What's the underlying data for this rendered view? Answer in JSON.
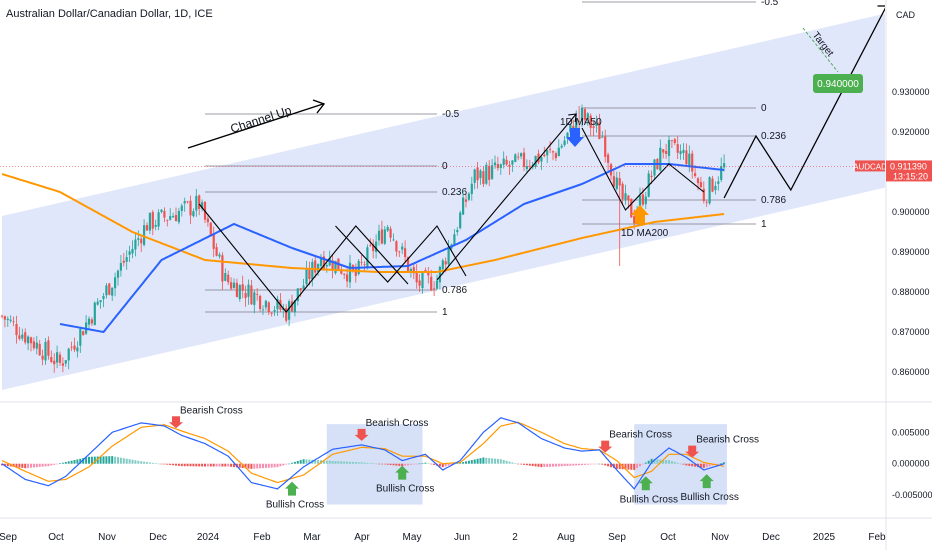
{
  "title": "Australian Dollar/Canadian Dollar, 1D, ICE",
  "currency": "CAD",
  "symbol_label": "AUDCAD",
  "last_price": "0.911390",
  "countdown": "13:15:20",
  "target_label": "Target",
  "target_value": "0.940000",
  "colors": {
    "channel": "#dfe6fb",
    "ma50": "#2962ff",
    "ma200": "#ff9800",
    "up": "#26a69a",
    "down": "#ef5350",
    "accent_green": "#4caf50",
    "highlight_box": "#cfdcf7"
  },
  "chart_data": [
    {
      "type": "candlestick",
      "ylim": [
        0.853,
        0.953
      ],
      "y_ticks": [
        "0.930000",
        "0.920000",
        "0.910000",
        "0.900000",
        "0.890000",
        "0.880000",
        "0.870000",
        "0.860000"
      ],
      "y_tick_values": [
        0.93,
        0.92,
        0.91,
        0.9,
        0.89,
        0.88,
        0.87,
        0.86
      ],
      "x_ticks": [
        "Sep",
        "Oct",
        "Nov",
        "Dec",
        "2024",
        "Feb",
        "Mar",
        "Apr",
        "May",
        "Jun",
        "2",
        "Aug",
        "Sep",
        "Oct",
        "Nov",
        "Dec",
        "2025",
        "Feb"
      ],
      "anchors": [
        {
          "day": 0,
          "price": 0.874
        },
        {
          "day": 20,
          "price": 0.862
        },
        {
          "day": 28,
          "price": 0.871
        },
        {
          "day": 50,
          "price": 0.897
        },
        {
          "day": 68,
          "price": 0.902
        },
        {
          "day": 77,
          "price": 0.883
        },
        {
          "day": 98,
          "price": 0.875
        },
        {
          "day": 110,
          "price": 0.889
        },
        {
          "day": 122,
          "price": 0.884
        },
        {
          "day": 133,
          "price": 0.897
        },
        {
          "day": 143,
          "price": 0.882
        },
        {
          "day": 150,
          "price": 0.883
        },
        {
          "day": 163,
          "price": 0.909
        },
        {
          "day": 178,
          "price": 0.912
        },
        {
          "day": 191,
          "price": 0.915
        },
        {
          "day": 200,
          "price": 0.924
        },
        {
          "day": 207,
          "price": 0.919
        },
        {
          "day": 213,
          "price": 0.904
        },
        {
          "day": 218,
          "price": 0.899
        },
        {
          "day": 228,
          "price": 0.916
        },
        {
          "day": 236,
          "price": 0.914
        },
        {
          "day": 242,
          "price": 0.904
        },
        {
          "day": 249,
          "price": 0.9114
        }
      ],
      "ma50": [
        {
          "day": 20,
          "price": 0.872
        },
        {
          "day": 35,
          "price": 0.87
        },
        {
          "day": 55,
          "price": 0.888
        },
        {
          "day": 80,
          "price": 0.897
        },
        {
          "day": 100,
          "price": 0.891
        },
        {
          "day": 120,
          "price": 0.886
        },
        {
          "day": 140,
          "price": 0.8865
        },
        {
          "day": 160,
          "price": 0.893
        },
        {
          "day": 180,
          "price": 0.902
        },
        {
          "day": 200,
          "price": 0.907
        },
        {
          "day": 215,
          "price": 0.912
        },
        {
          "day": 230,
          "price": 0.912
        },
        {
          "day": 249,
          "price": 0.9105
        }
      ],
      "ma200": [
        {
          "day": 0,
          "price": 0.9095
        },
        {
          "day": 20,
          "price": 0.905
        },
        {
          "day": 45,
          "price": 0.895
        },
        {
          "day": 70,
          "price": 0.888
        },
        {
          "day": 100,
          "price": 0.886
        },
        {
          "day": 130,
          "price": 0.885
        },
        {
          "day": 150,
          "price": 0.885
        },
        {
          "day": 170,
          "price": 0.888
        },
        {
          "day": 200,
          "price": 0.8935
        },
        {
          "day": 225,
          "price": 0.8975
        },
        {
          "day": 249,
          "price": 0.8995
        }
      ],
      "channel": {
        "lower": [
          {
            "day": 0,
            "price": 0.8555
          },
          {
            "day": 325,
            "price": 0.9095
          }
        ],
        "upper": [
          {
            "day": 0,
            "price": 0.899
          },
          {
            "day": 325,
            "price": 0.953
          }
        ]
      },
      "fib_sets": [
        {
          "from_day": 70,
          "to_day": 150,
          "levels": [
            {
              "label": "-0.5",
              "price": 0.9245
            },
            {
              "label": "0",
              "price": 0.9115
            },
            {
              "label": "0.236",
              "price": 0.905
            },
            {
              "label": "0.786",
              "price": 0.8805
            },
            {
              "label": "1",
              "price": 0.875
            }
          ]
        },
        {
          "from_day": 200,
          "to_day": 260,
          "levels": [
            {
              "label": "-0.5",
              "price": 0.9525
            },
            {
              "label": "0",
              "price": 0.926
            },
            {
              "label": "0.236",
              "price": 0.919
            },
            {
              "label": "0.786",
              "price": 0.903
            },
            {
              "label": "1",
              "price": 0.897
            }
          ]
        }
      ],
      "zigzags": [
        [
          {
            "day": 68,
            "price": 0.902
          },
          {
            "day": 98,
            "price": 0.875
          },
          {
            "day": 122,
            "price": 0.8965
          },
          {
            "day": 140,
            "price": 0.882
          }
        ],
        [
          {
            "day": 115,
            "price": 0.8965
          },
          {
            "day": 133,
            "price": 0.8825
          },
          {
            "day": 150,
            "price": 0.8965
          },
          {
            "day": 160,
            "price": 0.884
          }
        ],
        [
          {
            "day": 150,
            "price": 0.883
          },
          {
            "day": 198,
            "price": 0.9245
          }
        ],
        [
          {
            "day": 200,
            "price": 0.921
          },
          {
            "day": 215,
            "price": 0.9005
          },
          {
            "day": 230,
            "price": 0.912
          },
          {
            "day": 242,
            "price": 0.905
          }
        ]
      ],
      "projection": [
        {
          "day": 249,
          "price": 0.9035
        },
        {
          "day": 260,
          "price": 0.919
        },
        {
          "day": 272,
          "price": 0.9055
        },
        {
          "day": 305,
          "price": 0.9515
        }
      ],
      "annotations": [
        {
          "text": "Channel Up",
          "kind": "label"
        },
        {
          "text": "1D MA50",
          "kind": "label"
        },
        {
          "text": "1D MA200",
          "kind": "label"
        }
      ]
    },
    {
      "type": "macd",
      "ylim": [
        -0.008,
        0.0095
      ],
      "y_ticks": [
        "0.005000",
        "0.000000",
        "-0.005000"
      ],
      "y_tick_values": [
        0.005,
        0.0,
        -0.005
      ],
      "macd": [
        {
          "day": 0,
          "price": 0.0
        },
        {
          "day": 8,
          "price": -0.0025
        },
        {
          "day": 16,
          "price": -0.0035
        },
        {
          "day": 22,
          "price": -0.002
        },
        {
          "day": 30,
          "price": 0.0015
        },
        {
          "day": 38,
          "price": 0.005
        },
        {
          "day": 48,
          "price": 0.0065
        },
        {
          "day": 56,
          "price": 0.006
        },
        {
          "day": 62,
          "price": 0.0045
        },
        {
          "day": 70,
          "price": 0.0032
        },
        {
          "day": 78,
          "price": 0.0012
        },
        {
          "day": 86,
          "price": -0.003
        },
        {
          "day": 95,
          "price": -0.004
        },
        {
          "day": 104,
          "price": -0.0005
        },
        {
          "day": 114,
          "price": 0.0023
        },
        {
          "day": 124,
          "price": 0.003
        },
        {
          "day": 132,
          "price": 0.0022
        },
        {
          "day": 138,
          "price": 0.0005
        },
        {
          "day": 146,
          "price": 0.0015
        },
        {
          "day": 152,
          "price": -0.001
        },
        {
          "day": 158,
          "price": 0.0005
        },
        {
          "day": 166,
          "price": 0.005
        },
        {
          "day": 172,
          "price": 0.0073
        },
        {
          "day": 178,
          "price": 0.0065
        },
        {
          "day": 186,
          "price": 0.004
        },
        {
          "day": 194,
          "price": 0.0025
        },
        {
          "day": 200,
          "price": 0.002
        },
        {
          "day": 206,
          "price": 0.0022
        },
        {
          "day": 212,
          "price": -0.001
        },
        {
          "day": 218,
          "price": -0.004
        },
        {
          "day": 224,
          "price": 0.0002
        },
        {
          "day": 230,
          "price": 0.0025
        },
        {
          "day": 236,
          "price": 0.001
        },
        {
          "day": 242,
          "price": -0.001
        },
        {
          "day": 249,
          "price": 0.0
        }
      ],
      "signal": [
        {
          "day": 0,
          "price": 0.0005
        },
        {
          "day": 8,
          "price": -0.0012
        },
        {
          "day": 16,
          "price": -0.0028
        },
        {
          "day": 22,
          "price": -0.0025
        },
        {
          "day": 30,
          "price": -0.0005
        },
        {
          "day": 38,
          "price": 0.0028
        },
        {
          "day": 48,
          "price": 0.0058
        },
        {
          "day": 56,
          "price": 0.0062
        },
        {
          "day": 62,
          "price": 0.0052
        },
        {
          "day": 70,
          "price": 0.004
        },
        {
          "day": 78,
          "price": 0.002
        },
        {
          "day": 86,
          "price": -0.0015
        },
        {
          "day": 95,
          "price": -0.003
        },
        {
          "day": 104,
          "price": -0.0018
        },
        {
          "day": 114,
          "price": 0.0015
        },
        {
          "day": 124,
          "price": 0.0026
        },
        {
          "day": 132,
          "price": 0.0024
        },
        {
          "day": 138,
          "price": 0.0012
        },
        {
          "day": 146,
          "price": 0.0012
        },
        {
          "day": 152,
          "price": 0.0
        },
        {
          "day": 158,
          "price": 0.0002
        },
        {
          "day": 166,
          "price": 0.0032
        },
        {
          "day": 172,
          "price": 0.006
        },
        {
          "day": 178,
          "price": 0.0066
        },
        {
          "day": 186,
          "price": 0.005
        },
        {
          "day": 194,
          "price": 0.0032
        },
        {
          "day": 200,
          "price": 0.0024
        },
        {
          "day": 206,
          "price": 0.0022
        },
        {
          "day": 212,
          "price": 0.0005
        },
        {
          "day": 218,
          "price": -0.0022
        },
        {
          "day": 224,
          "price": -0.0012
        },
        {
          "day": 230,
          "price": 0.0015
        },
        {
          "day": 236,
          "price": 0.0015
        },
        {
          "day": 242,
          "price": 0.0002
        },
        {
          "day": 249,
          "price": -0.0004
        }
      ],
      "highlight_ranges": [
        {
          "from_day": 112,
          "to_day": 145
        },
        {
          "from_day": 218,
          "to_day": 250
        }
      ],
      "annotations": [
        {
          "text": "Bearish Cross",
          "day": 60,
          "direction": "down"
        },
        {
          "text": "Bearish Cross",
          "day": 124,
          "direction": "down"
        },
        {
          "text": "Bearish Cross",
          "day": 208,
          "direction": "down"
        },
        {
          "text": "Bearish Cross",
          "day": 238,
          "direction": "down"
        },
        {
          "text": "Bullish Cross",
          "day": 100,
          "direction": "up"
        },
        {
          "text": "Bullish Cross",
          "day": 138,
          "direction": "up"
        },
        {
          "text": "Bullish Cross",
          "day": 222,
          "direction": "up"
        },
        {
          "text": "Bullish Cross",
          "day": 243,
          "direction": "up"
        }
      ]
    }
  ]
}
